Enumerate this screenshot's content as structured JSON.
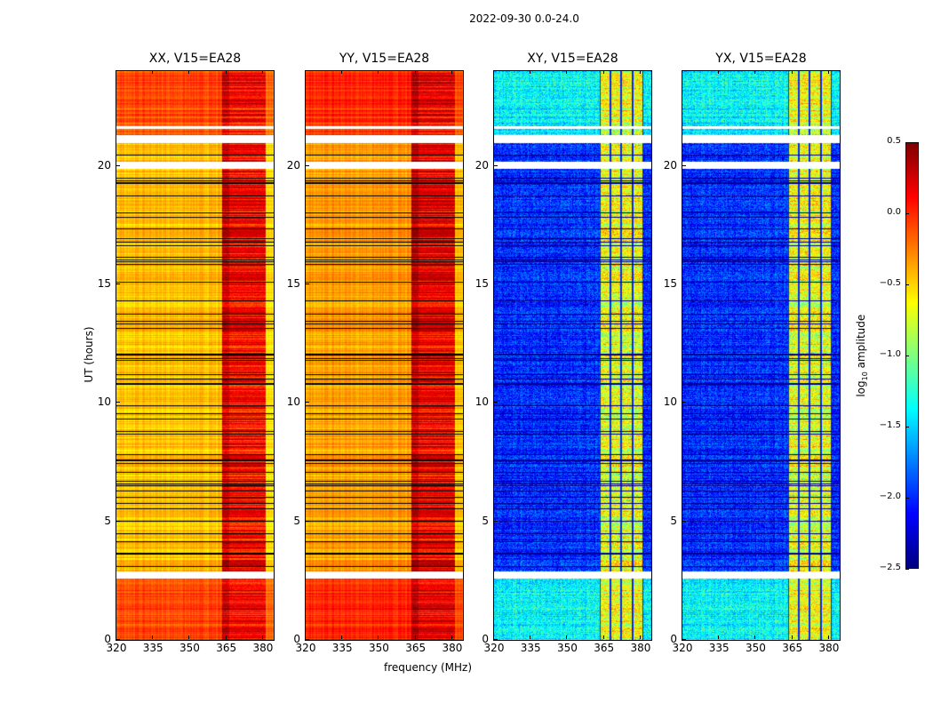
{
  "chart_data": {
    "type": "heatmap",
    "title": "2022-09-30 0.0-24.0",
    "xlabel": "frequency (MHz)",
    "ylabel": "UT (hours)",
    "xlim": [
      320,
      384.4
    ],
    "ylim": [
      0,
      24
    ],
    "x_ticks": [
      "320",
      "335",
      "350",
      "365",
      "380"
    ],
    "y_ticks": [
      "0",
      "5",
      "10",
      "15",
      "20"
    ],
    "panels": [
      {
        "title": "XX, V15=EA28",
        "pol": "XX",
        "baseline_log_amp": -0.45,
        "band_log_amp": 0.1
      },
      {
        "title": "YY, V15=EA28",
        "pol": "YY",
        "baseline_log_amp": -0.35,
        "band_log_amp": 0.15
      },
      {
        "title": "XY, V15=EA28",
        "pol": "XY",
        "baseline_log_amp": -2.0,
        "band_log_amp": -0.7
      },
      {
        "title": "YX, V15=EA28",
        "pol": "YX",
        "baseline_log_amp": -2.0,
        "band_log_amp": -0.7
      }
    ],
    "rfi_band_MHz": [
      363,
      381
    ],
    "flagged_hours": [
      [
        2.6,
        2.9
      ],
      [
        19.9,
        20.2
      ],
      [
        21.0,
        21.3
      ],
      [
        21.6,
        21.7
      ]
    ],
    "colorbar": {
      "label": "log10 amplitude",
      "label_main": "log",
      "label_sub": "10",
      "label_rest": " amplitude",
      "range": [
        -2.5,
        0.5
      ],
      "ticks": [
        "0.5",
        "0.0",
        "−0.5",
        "−1.0",
        "−1.5",
        "−2.0",
        "−2.5"
      ],
      "colormap": "jet"
    }
  }
}
